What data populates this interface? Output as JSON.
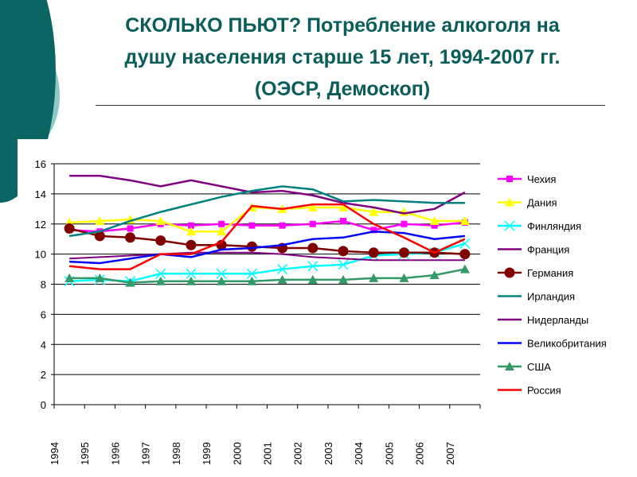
{
  "title": {
    "line1": "СКОЛЬКО ПЬЮТ? Потребление алкоголя на",
    "line2": "душу населения старше 15 лет, 1994-2007 гг.",
    "line3": "(ОЭСР, Демоскоп)"
  },
  "chart_data": {
    "type": "line",
    "categories": [
      "1994",
      "1995",
      "1996",
      "1997",
      "1998",
      "1999",
      "2000",
      "2001",
      "2002",
      "2003",
      "2004",
      "2005",
      "2006",
      "2007"
    ],
    "ylim": [
      0,
      16
    ],
    "yticks": [
      "0",
      "2",
      "4",
      "6",
      "8",
      "10",
      "12",
      "14",
      "16"
    ],
    "grid": true,
    "legend": "right",
    "series": [
      {
        "name": "Чехия",
        "color": "#FF00FF",
        "marker": "square",
        "values": [
          11.6,
          11.5,
          11.7,
          12.0,
          11.9,
          12.0,
          11.9,
          11.9,
          12.0,
          12.2,
          11.6,
          12.0,
          11.9,
          12.1
        ]
      },
      {
        "name": "Дания",
        "color": "#FFFF00",
        "marker": "triangle",
        "values": [
          12.1,
          12.2,
          12.3,
          12.2,
          11.5,
          11.5,
          13.1,
          13.0,
          13.1,
          13.1,
          12.8,
          12.8,
          12.2,
          12.2
        ]
      },
      {
        "name": "Финляндия",
        "color": "#00FFFF",
        "marker": "x",
        "values": [
          8.2,
          8.3,
          8.2,
          8.7,
          8.7,
          8.7,
          8.7,
          9.0,
          9.2,
          9.3,
          9.9,
          10.0,
          10.1,
          10.7
        ]
      },
      {
        "name": "Франция",
        "color": "#800080",
        "marker": "none",
        "values": [
          15.2,
          15.2,
          14.9,
          14.5,
          14.9,
          14.5,
          14.1,
          14.2,
          13.9,
          13.4,
          13.1,
          12.7,
          13.0,
          14.1
        ]
      },
      {
        "name": "Германия",
        "color": "#800000",
        "marker": "circle",
        "values": [
          11.7,
          11.2,
          11.1,
          10.9,
          10.6,
          10.6,
          10.5,
          10.4,
          10.4,
          10.2,
          10.1,
          10.1,
          10.1,
          10.0
        ]
      },
      {
        "name": "Ирландия",
        "color": "#008080",
        "marker": "none",
        "values": [
          11.2,
          11.5,
          12.2,
          12.8,
          13.3,
          13.8,
          14.2,
          14.5,
          14.3,
          13.5,
          13.6,
          13.5,
          13.4,
          13.4
        ]
      },
      {
        "name": "Нидерланды",
        "color": "#800080",
        "marker": "none",
        "values": [
          9.7,
          9.8,
          9.9,
          10.0,
          10.1,
          10.1,
          10.1,
          10.0,
          9.8,
          9.7,
          9.6,
          9.6,
          9.6,
          9.6
        ]
      },
      {
        "name": "Великобритания",
        "color": "#0000FF",
        "marker": "none",
        "values": [
          9.5,
          9.4,
          9.7,
          10.0,
          9.8,
          10.3,
          10.4,
          10.6,
          11.0,
          11.1,
          11.5,
          11.4,
          11.0,
          11.2
        ]
      },
      {
        "name": "США",
        "color": "#339966",
        "marker": "triangle",
        "values": [
          8.4,
          8.4,
          8.1,
          8.2,
          8.2,
          8.2,
          8.2,
          8.3,
          8.3,
          8.3,
          8.4,
          8.4,
          8.6,
          9.0
        ]
      },
      {
        "name": "Россия",
        "color": "#FF0000",
        "marker": "none",
        "values": [
          9.2,
          9.0,
          9.0,
          10.0,
          10.0,
          10.8,
          13.2,
          13.0,
          13.3,
          13.3,
          12.0,
          11.1,
          10.1,
          11.0
        ]
      }
    ]
  }
}
